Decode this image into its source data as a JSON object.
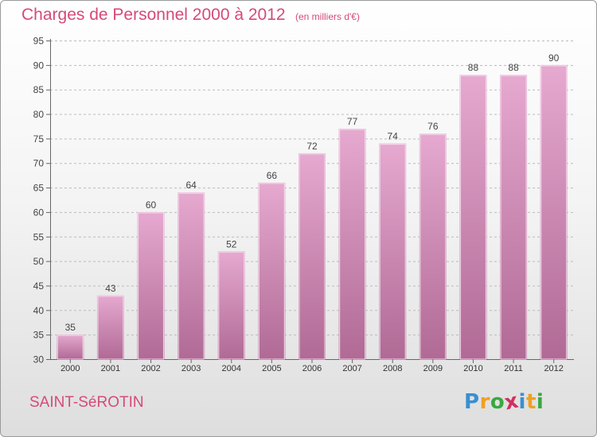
{
  "title": "Charges de Personnel 2000 à 2012",
  "subtitle": "(en milliers d'€)",
  "commune": "SAINT-SéROTIN",
  "logo": {
    "letters": [
      "P",
      "r",
      "o",
      "x",
      "i",
      "t",
      "i"
    ],
    "colors": [
      "#3a8fd0",
      "#f0a020",
      "#3aa840",
      "#d03060",
      "#3a8fd0",
      "#f0a020",
      "#3aa840"
    ]
  },
  "colors": {
    "bar_top": "#e6a9d0",
    "bar_bottom": "#b06a95",
    "bar_edge": "#f6dcec",
    "title": "#d54a7a",
    "grid": "#bbbbbb"
  },
  "chart_data": {
    "type": "bar",
    "categories": [
      "2000",
      "2001",
      "2002",
      "2003",
      "2004",
      "2005",
      "2006",
      "2007",
      "2008",
      "2009",
      "2010",
      "2011",
      "2012"
    ],
    "values": [
      35,
      43,
      60,
      64,
      52,
      66,
      72,
      77,
      74,
      76,
      88,
      88,
      90
    ],
    "data_labels": [
      "35",
      "43",
      "60",
      "64",
      "52",
      "66",
      "72",
      "77",
      "74",
      "76",
      "88",
      "88",
      "90"
    ],
    "ylim": [
      30,
      95
    ],
    "yticks": [
      30,
      35,
      40,
      45,
      50,
      55,
      60,
      65,
      70,
      75,
      80,
      85,
      90,
      95
    ],
    "grid": "horizontal dashed",
    "legend": "none",
    "xlabel": "",
    "ylabel": ""
  }
}
